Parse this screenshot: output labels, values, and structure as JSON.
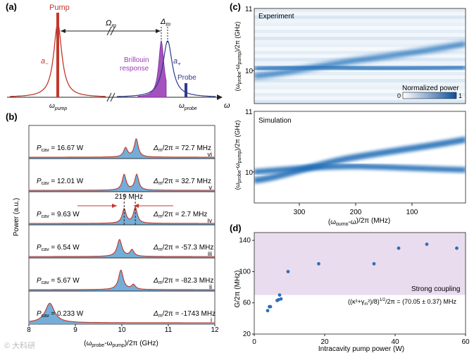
{
  "panel_a": {
    "label": "(a)",
    "pump_label": "Pump",
    "omega_m_label": "Ω",
    "omega_m_sub": "m",
    "delta_m_label": "Δ",
    "delta_m_sub": "m",
    "a_minus_label": "a",
    "a_minus_sub": "−",
    "a_plus_label": "a",
    "a_plus_sub": "+",
    "brillouin_line1": "Brillouin",
    "brillouin_line2": "response",
    "probe_label": "Probe",
    "omega_pump_label": "ω",
    "omega_pump_sub": "pump",
    "omega_probe_label": "ω",
    "omega_probe_sub": "probe",
    "omega_axis_label": "ω",
    "colors": {
      "pump": "#c0392b",
      "brillouin": "#9b3fb8",
      "probe": "#2e3a8c"
    }
  },
  "panel_b": {
    "label": "(b)",
    "ylabel": "Power (a.u.)",
    "xlabel_parts": [
      "(ω",
      "probe",
      "-ω",
      "pump",
      ")/2π (GHz)"
    ],
    "xticks": [
      "8",
      "9",
      "10",
      "11",
      "12"
    ],
    "splitting_label": "219 MHz",
    "traces": [
      {
        "roman": "vi",
        "p_label": "P",
        "p_sub": "cav",
        "p_value": " = 16.67 W",
        "d_label": "Δ",
        "d_sub": "m",
        "d_value": "/2π = 72.7 MHz"
      },
      {
        "roman": "v",
        "p_label": "P",
        "p_sub": "cav",
        "p_value": " = 12.01 W",
        "d_label": "Δ",
        "d_sub": "m",
        "d_value": "/2π = 32.7 MHz"
      },
      {
        "roman": "iv",
        "p_label": "P",
        "p_sub": "cav",
        "p_value": " = 9.63 W",
        "d_label": "Δ",
        "d_sub": "m",
        "d_value": "/2π = 2.7 MHz"
      },
      {
        "roman": "iii",
        "p_label": "P",
        "p_sub": "cav",
        "p_value": " = 6.54 W",
        "d_label": "Δ",
        "d_sub": "m",
        "d_value": "/2π = -57.3 MHz"
      },
      {
        "roman": "ii",
        "p_label": "P",
        "p_sub": "cav",
        "p_value": " = 5.67 W",
        "d_label": "Δ",
        "d_sub": "m",
        "d_value": "/2π = -82.3 MHz"
      },
      {
        "roman": "i",
        "p_label": "P",
        "p_sub": "cav",
        "p_value": " = 0.233 W",
        "d_label": "Δ",
        "d_sub": "m",
        "d_value": "/2π = -1743 MHz"
      }
    ]
  },
  "panel_c": {
    "label": "(c)",
    "experiment_label": "Experiment",
    "simulation_label": "Simulation",
    "ylabel_parts": [
      "(ω",
      "probe",
      "-ω",
      "pump",
      ")/2π (GHz)"
    ],
    "yticks": [
      "11",
      "10"
    ],
    "xlabel_parts": [
      "(ω",
      "pump",
      "-ω",
      "",
      ")/2π (MHz)"
    ],
    "xticks": [
      "300",
      "200",
      "100"
    ],
    "colorbar_title": "Normalized power",
    "colorbar_min": "0",
    "colorbar_max": "1"
  },
  "panel_d": {
    "label": "(d)",
    "ylabel_parts": [
      "G/2π (MHz)"
    ],
    "xlabel": "Intracavity pump power (W)",
    "strong_coupling_label": "Strong coupling",
    "threshold_formula": "((κ²+γ",
    "threshold_formula_sub": "m",
    "threshold_formula_rest": "²)/8)",
    "threshold_formula_sup": "1/2",
    "threshold_formula_end": "/2π = (70.05 ± 0.37) MHz",
    "xticks": [
      "0",
      "20",
      "40",
      "60"
    ],
    "yticks": [
      "20",
      "60",
      "100",
      "140"
    ],
    "colors": {
      "points": "#2c6fb7",
      "shade": "#eadcef"
    }
  },
  "chart_data": {
    "type": "scatter",
    "title": "",
    "xlabel": "Intracavity pump power (W)",
    "ylabel": "G/2π (MHz)",
    "xlim": [
      0,
      60
    ],
    "ylim": [
      20,
      150
    ],
    "threshold": 70.05,
    "x": [
      3.8,
      4.3,
      4.6,
      6.5,
      6.9,
      7.2,
      7.6,
      9.6,
      18.3,
      34.0,
      41.0,
      49.0,
      57.5
    ],
    "y": [
      50,
      55,
      55,
      63,
      64,
      70,
      65,
      100,
      110,
      110,
      130,
      135,
      130
    ]
  },
  "watermark": "© 大科研"
}
